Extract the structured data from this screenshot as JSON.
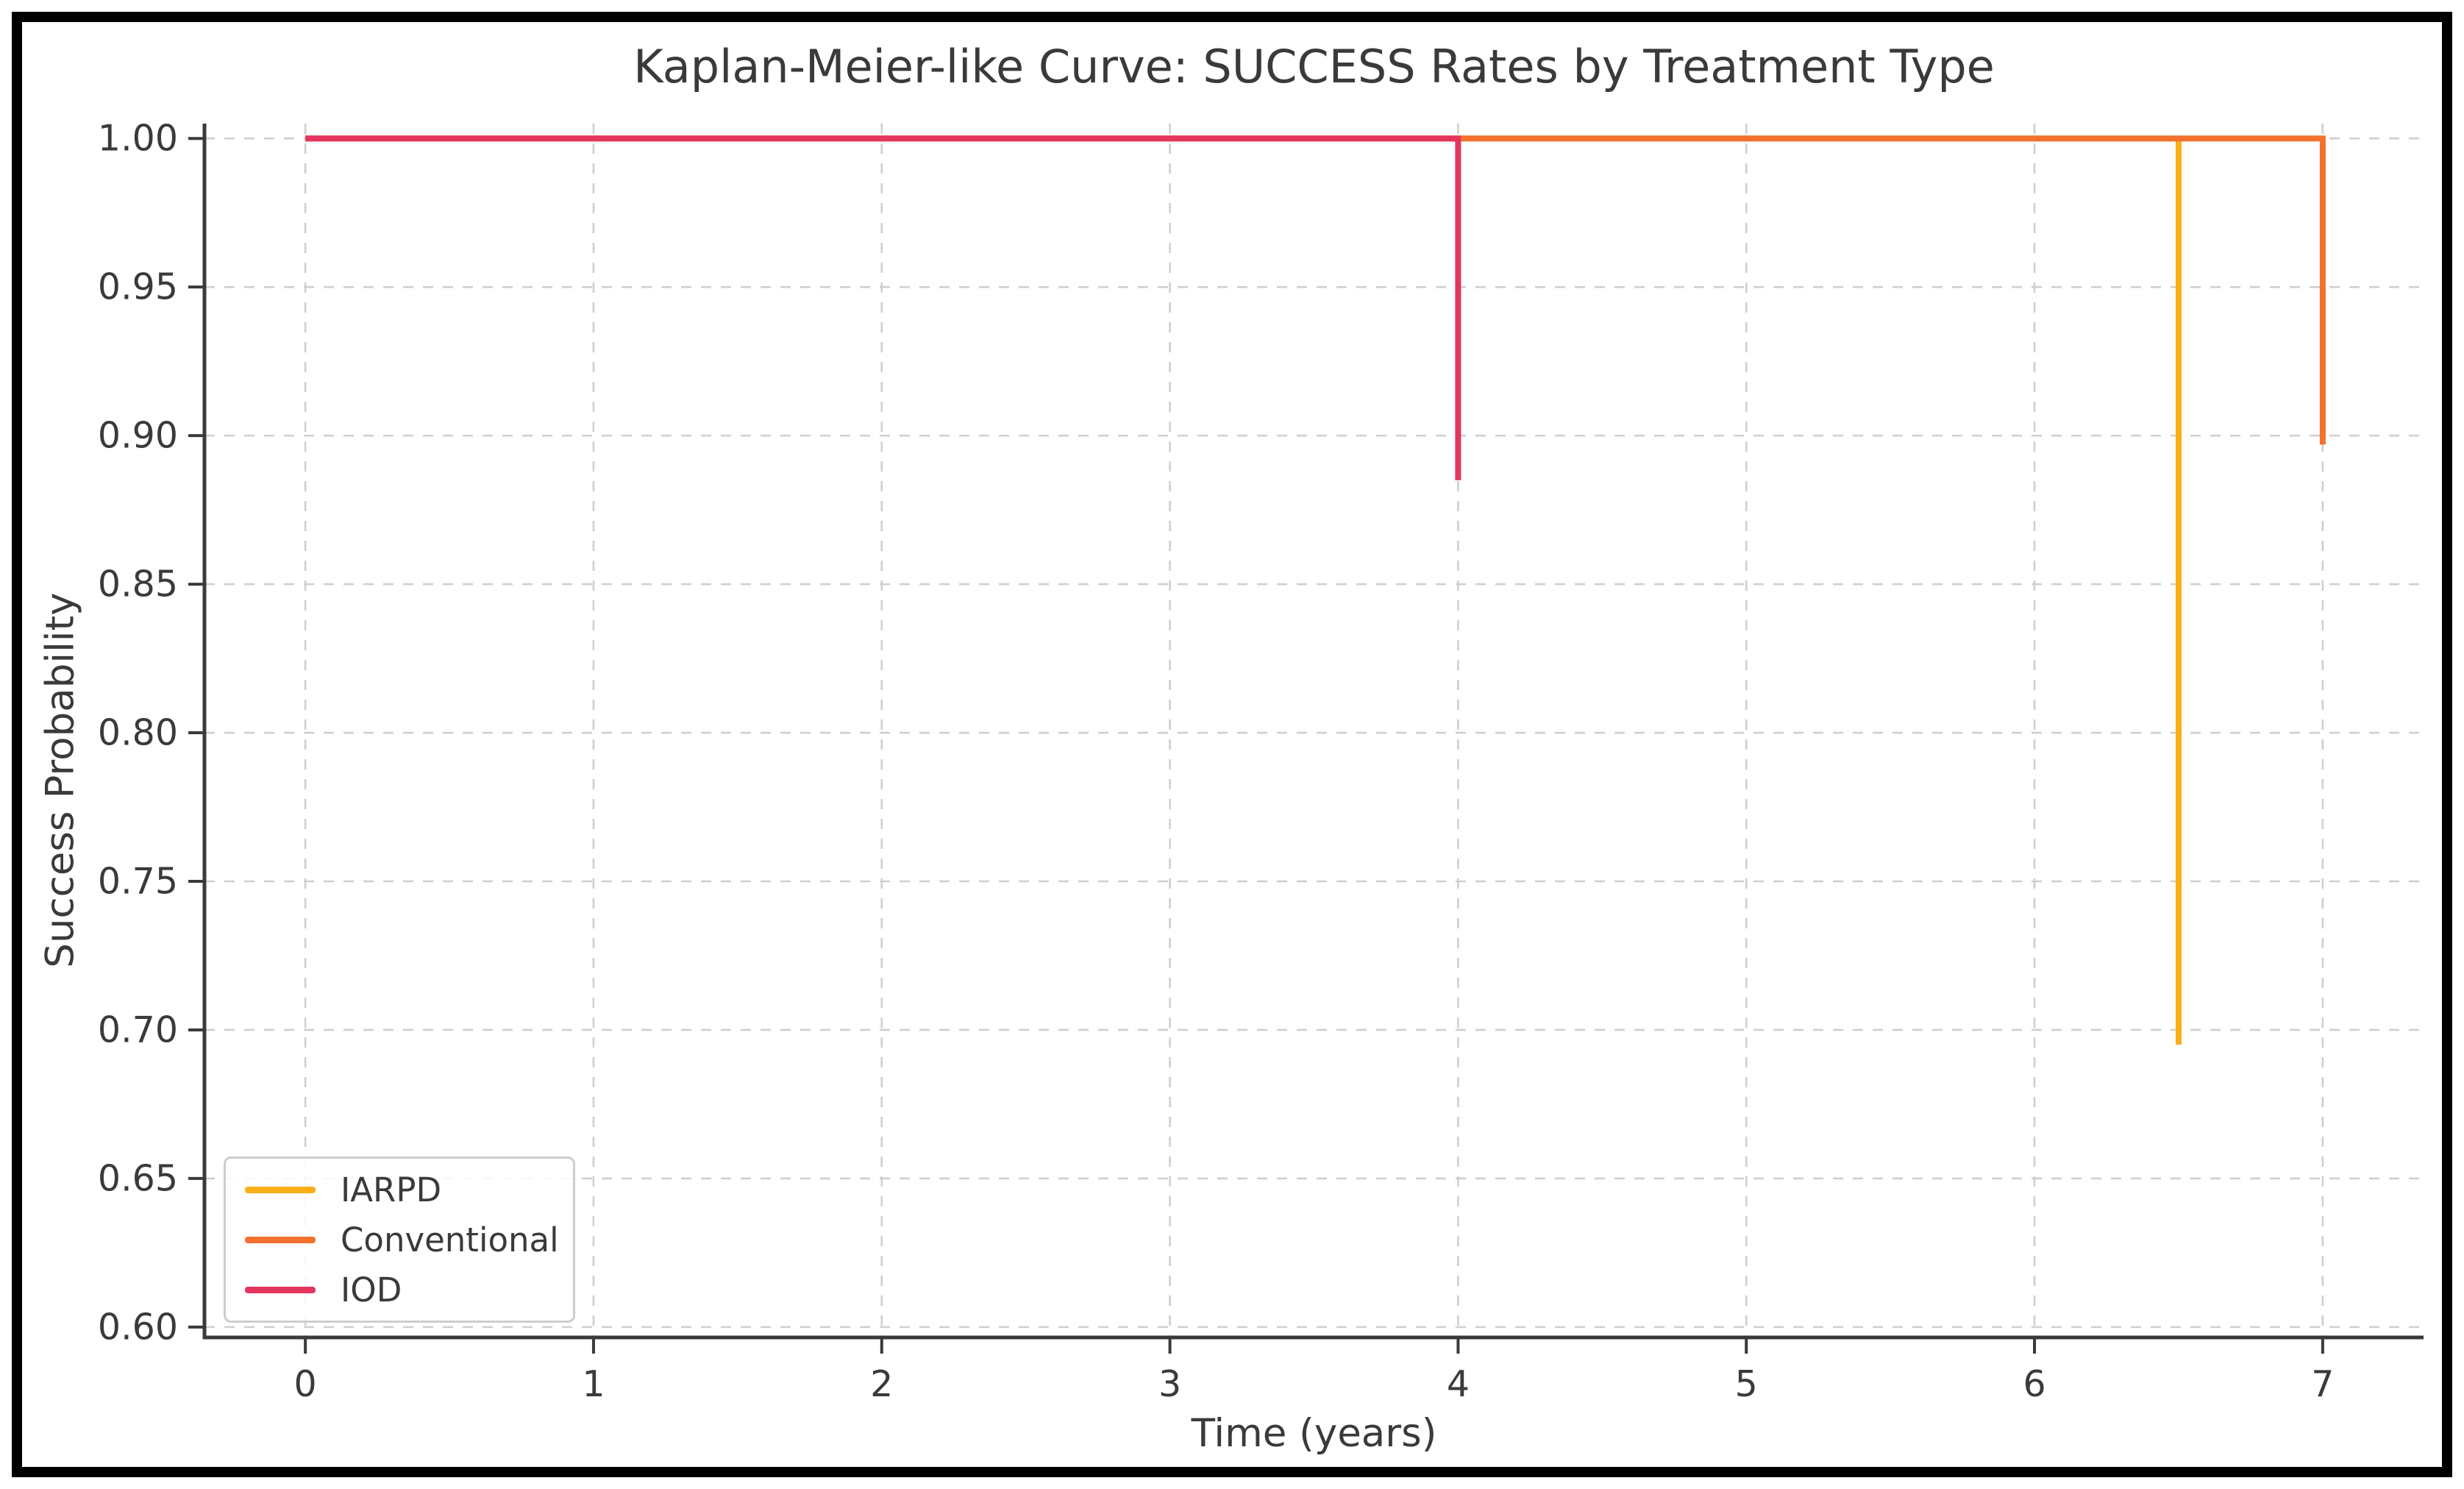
{
  "figure": {
    "background": "#ffffff",
    "frame_color": "#000000"
  },
  "chart_data": {
    "type": "line",
    "style": "kaplan-meier-step",
    "title": "Kaplan-Meier-like Curve: SUCCESS Rates by Treatment Type",
    "xlabel": "Time (years)",
    "ylabel": "Success Probability",
    "xlim": [
      -0.35,
      7.35
    ],
    "ylim": [
      0.5965,
      1.005
    ],
    "x_ticks": [
      0,
      1,
      2,
      3,
      4,
      5,
      6,
      7
    ],
    "y_ticks": [
      0.6,
      0.65,
      0.7,
      0.75,
      0.8,
      0.85,
      0.9,
      0.95,
      1.0
    ],
    "grid": {
      "show": true,
      "line_style": "dashed",
      "color": "#cfcfcf"
    },
    "axis": {
      "spine_color": "#3a3a3a",
      "text_color": "#3a3a3a"
    },
    "legend": {
      "position": "lower-left",
      "entries": [
        "IARPD",
        "Conventional",
        "IOD"
      ]
    },
    "series": [
      {
        "name": "IARPD",
        "color": "#FBAE17",
        "points": [
          [
            0,
            1.0
          ],
          [
            6.5,
            1.0
          ],
          [
            6.5,
            0.695
          ]
        ]
      },
      {
        "name": "Conventional",
        "color": "#F3712F",
        "points": [
          [
            0,
            1.0
          ],
          [
            7.0,
            1.0
          ],
          [
            7.0,
            0.897
          ]
        ]
      },
      {
        "name": "IOD",
        "color": "#E4355F",
        "points": [
          [
            0,
            1.0
          ],
          [
            4.0,
            1.0
          ],
          [
            4.0,
            0.885
          ]
        ]
      }
    ]
  }
}
